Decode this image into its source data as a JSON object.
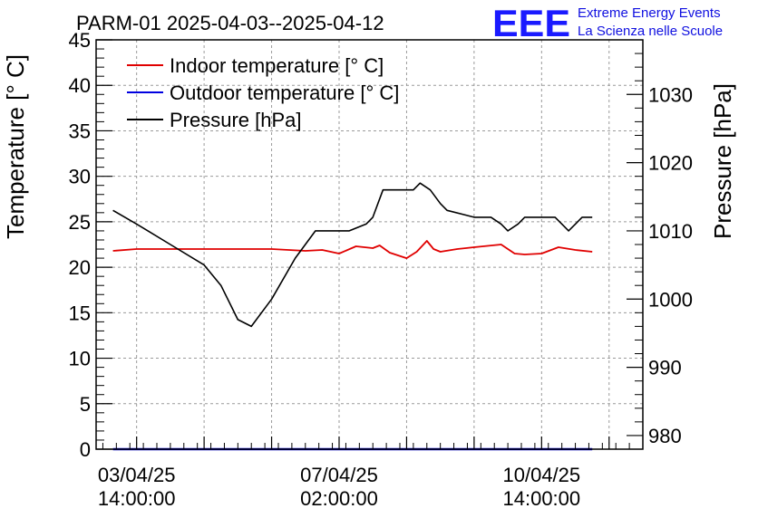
{
  "chart_data": {
    "type": "line",
    "title": "PARM-01 2025-04-03--2025-04-12",
    "ylabel": "Temperature [° C]",
    "y2label": "Pressure [hPa]",
    "ylim": [
      0,
      45
    ],
    "y2lim": [
      978,
      1038
    ],
    "y_ticks": [
      0,
      5,
      10,
      15,
      20,
      25,
      30,
      35,
      40,
      45
    ],
    "y2_ticks": [
      980,
      990,
      1000,
      1010,
      1020,
      1030
    ],
    "xlim_hours": [
      -12,
      150
    ],
    "x_ticks": [
      {
        "hours": 0,
        "line1": "03/04/25",
        "line2": "14:00:00"
      },
      {
        "hours": 60,
        "line1": "07/04/25",
        "line2": "02:00:00"
      },
      {
        "hours": 120,
        "line1": "10/04/25",
        "line2": "14:00:00"
      }
    ],
    "grid": true,
    "legend_position": "top-left",
    "legend": [
      {
        "name": "Indoor temperature [° C]",
        "color": "#e00000"
      },
      {
        "name": "Outdoor temperature [° C]",
        "color": "#0000e0"
      },
      {
        "name": "Pressure [hPa]",
        "color": "#000000"
      }
    ],
    "series": [
      {
        "name": "Indoor temperature [° C]",
        "axis": "left",
        "color": "#e00000",
        "x": [
          -7,
          0,
          10,
          20,
          30,
          40,
          45,
          50,
          55,
          60,
          65,
          70,
          72,
          75,
          80,
          83,
          86,
          88,
          90,
          95,
          100,
          108,
          112,
          115,
          120,
          125,
          130,
          135
        ],
        "y": [
          21.8,
          22.0,
          22.0,
          22.0,
          22.0,
          22.0,
          21.9,
          21.8,
          21.9,
          21.5,
          22.3,
          22.1,
          22.4,
          21.6,
          21.0,
          21.7,
          22.9,
          22.0,
          21.7,
          22.0,
          22.2,
          22.5,
          21.5,
          21.4,
          21.5,
          22.2,
          21.9,
          21.7
        ]
      },
      {
        "name": "Outdoor temperature [° C]",
        "axis": "left",
        "color": "#0000e0",
        "x": [
          -7,
          135
        ],
        "y": [
          0,
          0
        ]
      },
      {
        "name": "Pressure [hPa]",
        "axis": "right",
        "color": "#000000",
        "x": [
          -7,
          0,
          10,
          20,
          25,
          30,
          34,
          40,
          47,
          53,
          56,
          60,
          63,
          68,
          70,
          73,
          78,
          82,
          84,
          87,
          90,
          92,
          100,
          105,
          108,
          110,
          113,
          115,
          120,
          124,
          126,
          128,
          130,
          132,
          135
        ],
        "y": [
          1013,
          1011,
          1008,
          1005,
          1002,
          997,
          996,
          1000,
          1006,
          1010,
          1010,
          1010,
          1010,
          1011,
          1012,
          1016,
          1016,
          1016,
          1017,
          1016,
          1014,
          1013,
          1012,
          1012,
          1011,
          1010,
          1011,
          1012,
          1012,
          1012,
          1011,
          1010,
          1011,
          1012,
          1012
        ]
      }
    ]
  },
  "logo": {
    "mark": "EEE",
    "line1": "Extreme Energy Events",
    "line2": "La Scienza nelle Scuole",
    "color": "#1010e0"
  }
}
